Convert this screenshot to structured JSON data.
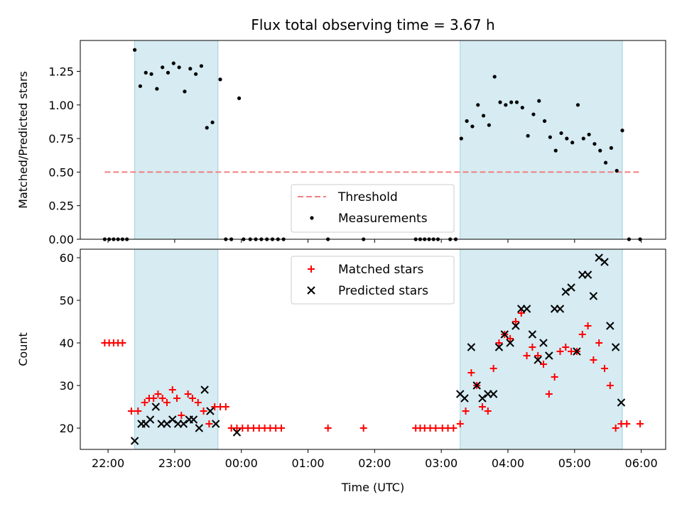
{
  "chart_data": [
    {
      "type": "scatter",
      "title": "Flux total observing time = 3.67 h",
      "ylabel": "Matched/Predicted stars",
      "xlabel": "",
      "xlim": [
        "21:35",
        "06:22"
      ],
      "ylim": [
        0,
        1.48
      ],
      "yticks": [
        "0.00",
        "0.25",
        "0.50",
        "0.75",
        "1.00",
        "1.25"
      ],
      "shaded_intervals": [
        [
          "22:24",
          "23:39"
        ],
        [
          "03:17",
          "05:43"
        ]
      ],
      "threshold": {
        "name": "Threshold",
        "value": 0.5,
        "x_range": [
          "21:57",
          "05:59"
        ],
        "color": "#f08080"
      },
      "series": [
        {
          "name": "Measurements",
          "color": "#000000",
          "points": [
            [
              "21:57",
              0
            ],
            [
              "22:01",
              0
            ],
            [
              "22:05",
              0
            ],
            [
              "22:09",
              0
            ],
            [
              "22:13",
              0
            ],
            [
              "22:17",
              0
            ],
            [
              "22:24",
              1.41
            ],
            [
              "22:29",
              1.14
            ],
            [
              "22:34",
              1.24
            ],
            [
              "22:39",
              1.23
            ],
            [
              "22:44",
              1.12
            ],
            [
              "22:49",
              1.28
            ],
            [
              "22:54",
              1.24
            ],
            [
              "22:59",
              1.31
            ],
            [
              "23:04",
              1.28
            ],
            [
              "23:09",
              1.1
            ],
            [
              "23:14",
              1.27
            ],
            [
              "23:19",
              1.23
            ],
            [
              "23:24",
              1.29
            ],
            [
              "23:29",
              0.83
            ],
            [
              "23:34",
              0.87
            ],
            [
              "23:41",
              1.19
            ],
            [
              "23:46",
              0
            ],
            [
              "23:51",
              0
            ],
            [
              "23:58",
              1.05
            ],
            [
              "00:02",
              0
            ],
            [
              "00:08",
              0
            ],
            [
              "00:13",
              0
            ],
            [
              "00:18",
              0
            ],
            [
              "00:23",
              0
            ],
            [
              "00:28",
              0
            ],
            [
              "00:33",
              0
            ],
            [
              "00:38",
              0
            ],
            [
              "01:18",
              0
            ],
            [
              "01:50",
              0
            ],
            [
              "02:37",
              0
            ],
            [
              "02:41",
              0
            ],
            [
              "02:45",
              0
            ],
            [
              "02:49",
              0
            ],
            [
              "02:53",
              0
            ],
            [
              "02:57",
              0
            ],
            [
              "03:08",
              0
            ],
            [
              "03:13",
              0
            ],
            [
              "03:18",
              0.75
            ],
            [
              "03:23",
              0.88
            ],
            [
              "03:28",
              0.84
            ],
            [
              "03:33",
              1.0
            ],
            [
              "03:38",
              0.92
            ],
            [
              "03:43",
              0.85
            ],
            [
              "03:48",
              1.21
            ],
            [
              "03:53",
              1.02
            ],
            [
              "03:58",
              1.0
            ],
            [
              "04:03",
              1.02
            ],
            [
              "04:08",
              1.02
            ],
            [
              "04:13",
              0.98
            ],
            [
              "04:18",
              0.77
            ],
            [
              "04:23",
              0.93
            ],
            [
              "04:28",
              1.03
            ],
            [
              "04:33",
              0.88
            ],
            [
              "04:38",
              0.76
            ],
            [
              "04:43",
              0.66
            ],
            [
              "04:48",
              0.79
            ],
            [
              "04:53",
              0.75
            ],
            [
              "04:58",
              0.72
            ],
            [
              "05:03",
              1.0
            ],
            [
              "05:08",
              0.75
            ],
            [
              "05:13",
              0.78
            ],
            [
              "05:18",
              0.71
            ],
            [
              "05:23",
              0.66
            ],
            [
              "05:28",
              0.57
            ],
            [
              "05:33",
              0.68
            ],
            [
              "05:38",
              0.51
            ],
            [
              "05:43",
              0.81
            ],
            [
              "05:49",
              0
            ],
            [
              "05:59",
              0
            ]
          ]
        }
      ],
      "legend": {
        "position": "bottom-center"
      }
    },
    {
      "type": "scatter",
      "title": "",
      "ylabel": "Count",
      "xlabel": "Time (UTC)",
      "xlim": [
        "21:35",
        "06:22"
      ],
      "ylim": [
        15,
        62
      ],
      "yticks": [
        "20",
        "30",
        "40",
        "50",
        "60"
      ],
      "xticks": [
        "22:00",
        "23:00",
        "00:00",
        "01:00",
        "02:00",
        "03:00",
        "04:00",
        "05:00",
        "06:00"
      ],
      "shaded_intervals": [
        [
          "22:24",
          "23:39"
        ],
        [
          "03:17",
          "05:43"
        ]
      ],
      "series": [
        {
          "name": "Matched stars",
          "marker": "plus",
          "color": "#ff0000",
          "points": [
            [
              "21:57",
              40
            ],
            [
              "22:01",
              40
            ],
            [
              "22:05",
              40
            ],
            [
              "22:09",
              40
            ],
            [
              "22:13",
              40
            ],
            [
              "22:21",
              24
            ],
            [
              "22:27",
              24
            ],
            [
              "22:33",
              26
            ],
            [
              "22:37",
              27
            ],
            [
              "22:41",
              27
            ],
            [
              "22:45",
              28
            ],
            [
              "22:49",
              27
            ],
            [
              "22:53",
              26
            ],
            [
              "22:58",
              29
            ],
            [
              "23:02",
              27
            ],
            [
              "23:06",
              23
            ],
            [
              "23:12",
              28
            ],
            [
              "23:16",
              27
            ],
            [
              "23:21",
              26
            ],
            [
              "23:26",
              24
            ],
            [
              "23:31",
              21
            ],
            [
              "23:36",
              25
            ],
            [
              "23:41",
              25
            ],
            [
              "23:46",
              25
            ],
            [
              "23:51",
              20
            ],
            [
              "23:56",
              20
            ],
            [
              "00:01",
              20
            ],
            [
              "00:06",
              20
            ],
            [
              "00:11",
              20
            ],
            [
              "00:16",
              20
            ],
            [
              "00:21",
              20
            ],
            [
              "00:26",
              20
            ],
            [
              "00:31",
              20
            ],
            [
              "00:36",
              20
            ],
            [
              "01:18",
              20
            ],
            [
              "01:50",
              20
            ],
            [
              "02:37",
              20
            ],
            [
              "02:41",
              20
            ],
            [
              "02:45",
              20
            ],
            [
              "02:50",
              20
            ],
            [
              "02:55",
              20
            ],
            [
              "03:01",
              20
            ],
            [
              "03:06",
              20
            ],
            [
              "03:11",
              20
            ],
            [
              "03:17",
              21
            ],
            [
              "03:22",
              24
            ],
            [
              "03:27",
              33
            ],
            [
              "03:32",
              30
            ],
            [
              "03:37",
              25
            ],
            [
              "03:42",
              24
            ],
            [
              "03:47",
              34
            ],
            [
              "03:52",
              40
            ],
            [
              "03:57",
              42
            ],
            [
              "04:02",
              41
            ],
            [
              "04:07",
              45
            ],
            [
              "04:12",
              47
            ],
            [
              "04:17",
              37
            ],
            [
              "04:22",
              39
            ],
            [
              "04:27",
              37
            ],
            [
              "04:32",
              35
            ],
            [
              "04:37",
              28
            ],
            [
              "04:42",
              32
            ],
            [
              "04:47",
              38
            ],
            [
              "04:52",
              39
            ],
            [
              "04:57",
              38
            ],
            [
              "05:02",
              38
            ],
            [
              "05:07",
              42
            ],
            [
              "05:12",
              44
            ],
            [
              "05:17",
              36
            ],
            [
              "05:22",
              40
            ],
            [
              "05:27",
              34
            ],
            [
              "05:32",
              30
            ],
            [
              "05:37",
              20
            ],
            [
              "05:42",
              21
            ],
            [
              "05:47",
              21
            ],
            [
              "05:59",
              21
            ]
          ]
        },
        {
          "name": "Predicted stars",
          "marker": "x",
          "color": "#000000",
          "points": [
            [
              "22:24",
              17
            ],
            [
              "22:30",
              21
            ],
            [
              "22:34",
              21
            ],
            [
              "22:38",
              22
            ],
            [
              "22:43",
              25
            ],
            [
              "22:48",
              21
            ],
            [
              "22:53",
              21
            ],
            [
              "22:58",
              22
            ],
            [
              "23:03",
              21
            ],
            [
              "23:08",
              21
            ],
            [
              "23:13",
              22
            ],
            [
              "23:17",
              22
            ],
            [
              "23:22",
              20
            ],
            [
              "23:27",
              29
            ],
            [
              "23:32",
              24
            ],
            [
              "23:37",
              21
            ],
            [
              "23:56",
              19
            ],
            [
              "03:17",
              28
            ],
            [
              "03:21",
              27
            ],
            [
              "03:27",
              39
            ],
            [
              "03:32",
              30
            ],
            [
              "03:37",
              27
            ],
            [
              "03:42",
              28
            ],
            [
              "03:47",
              28
            ],
            [
              "03:52",
              39
            ],
            [
              "03:57",
              42
            ],
            [
              "04:02",
              40
            ],
            [
              "04:07",
              44
            ],
            [
              "04:12",
              48
            ],
            [
              "04:17",
              48
            ],
            [
              "04:22",
              42
            ],
            [
              "04:27",
              36
            ],
            [
              "04:32",
              40
            ],
            [
              "04:37",
              37
            ],
            [
              "04:42",
              48
            ],
            [
              "04:47",
              48
            ],
            [
              "04:52",
              52
            ],
            [
              "04:57",
              53
            ],
            [
              "05:02",
              38
            ],
            [
              "05:07",
              56
            ],
            [
              "05:12",
              56
            ],
            [
              "05:17",
              51
            ],
            [
              "05:22",
              60
            ],
            [
              "05:27",
              59
            ],
            [
              "05:32",
              44
            ],
            [
              "05:37",
              39
            ],
            [
              "05:42",
              26
            ]
          ]
        }
      ],
      "legend": {
        "position": "top-center"
      }
    }
  ]
}
